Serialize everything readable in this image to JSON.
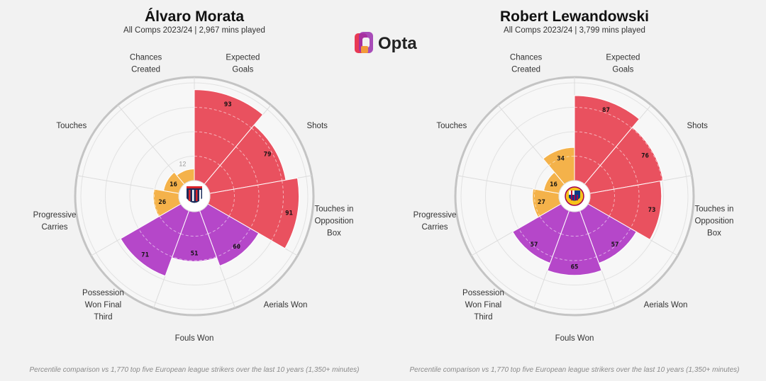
{
  "brand": {
    "name": "Opta"
  },
  "colors": {
    "attacking": "#e9515f",
    "possession": "#f4b24a",
    "defending": "#b547c9",
    "background": "#f2f2f2",
    "ring": "#bdbdbd"
  },
  "footnote": "Percentile comparison vs 1,770 top five European league strikers over the last 10 years (1,350+ minutes)",
  "chart_data": [
    {
      "type": "pie",
      "subtype": "radial-percentile",
      "title": "Álvaro Morata",
      "subtitle": "All Comps 2023/24 | 2,967 mins played",
      "club_badge": "atletico-madrid-crest",
      "rlim": [
        0,
        100
      ],
      "categories": [
        "Expected Goals",
        "Shots",
        "Touches in Opposition Box",
        "Aerials Won",
        "Fouls Won",
        "Possession Won Final Third",
        "Progressive Carries",
        "Touches",
        "Chances Created"
      ],
      "label_lines": [
        [
          "Expected",
          "Goals"
        ],
        [
          "Shots"
        ],
        [
          "Touches in",
          "Opposition",
          "Box"
        ],
        [
          "Aerials Won"
        ],
        [
          "Fouls Won"
        ],
        [
          "Possession",
          "Won Final",
          "Third"
        ],
        [
          "Progressive",
          "Carries"
        ],
        [
          "Touches"
        ],
        [
          "Chances",
          "Created"
        ]
      ],
      "values": [
        93,
        79,
        91,
        60,
        51,
        71,
        26,
        16,
        12
      ],
      "value_labels": [
        "93",
        "79",
        "91",
        "60",
        "51",
        "71",
        "26",
        "16",
        "12"
      ],
      "groups": [
        "attacking",
        "attacking",
        "attacking",
        "defending",
        "defending",
        "defending",
        "possession",
        "possession",
        "possession"
      ]
    },
    {
      "type": "pie",
      "subtype": "radial-percentile",
      "title": "Robert Lewandowski",
      "subtitle": "All Comps 2023/24 | 3,799 mins played",
      "club_badge": "fc-barcelona-crest",
      "rlim": [
        0,
        100
      ],
      "categories": [
        "Expected Goals",
        "Shots",
        "Touches in Opposition Box",
        "Aerials Won",
        "Fouls Won",
        "Possession Won Final Third",
        "Progressive Carries",
        "Touches",
        "Chances Created"
      ],
      "label_lines": [
        [
          "Expected",
          "Goals"
        ],
        [
          "Shots"
        ],
        [
          "Touches in",
          "Opposition",
          "Box"
        ],
        [
          "Aerials Won"
        ],
        [
          "Fouls Won"
        ],
        [
          "Possession",
          "Won Final",
          "Third"
        ],
        [
          "Progressive",
          "Carries"
        ],
        [
          "Touches"
        ],
        [
          "Chances",
          "Created"
        ]
      ],
      "values": [
        87,
        76,
        73,
        57,
        65,
        57,
        27,
        16,
        34
      ],
      "value_labels": [
        "87",
        "76",
        "73",
        "57",
        "65",
        "57",
        "27",
        "16",
        "34"
      ],
      "groups": [
        "attacking",
        "attacking",
        "attacking",
        "defending",
        "defending",
        "defending",
        "possession",
        "possession",
        "possession"
      ]
    }
  ]
}
